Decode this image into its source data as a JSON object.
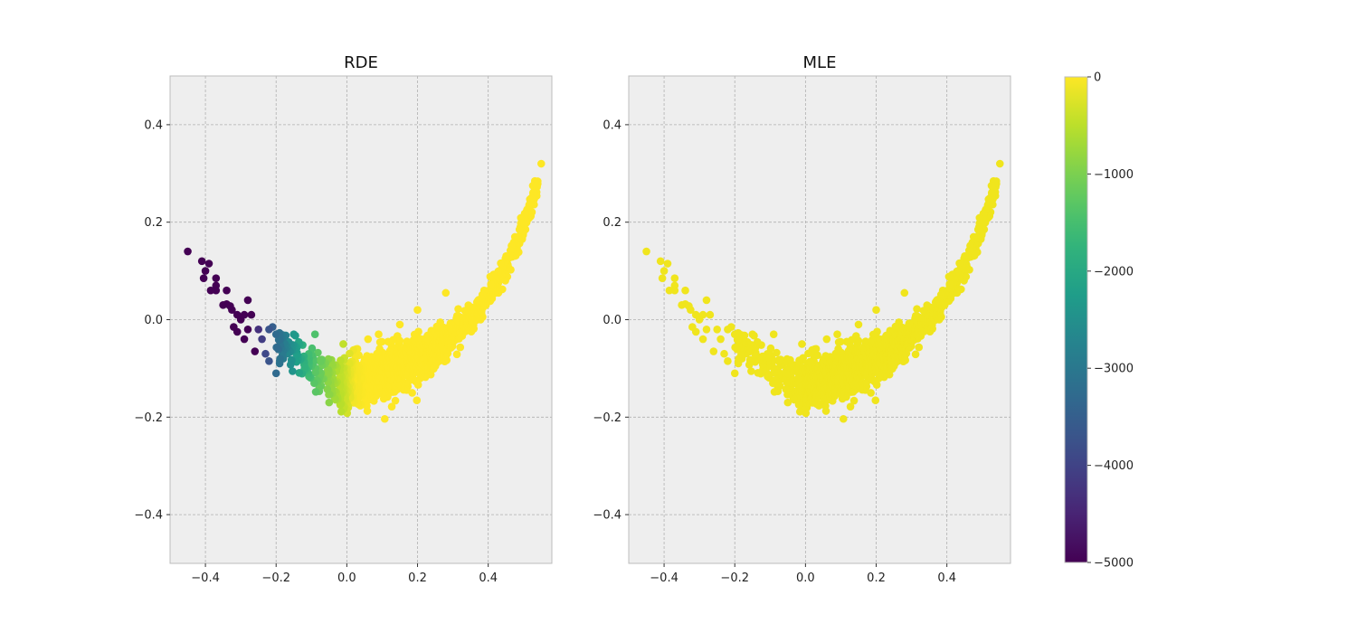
{
  "chart_data": [
    {
      "type": "scatter",
      "title": "RDE",
      "xlabel": "",
      "ylabel": "",
      "xlim": [
        -0.5,
        0.58
      ],
      "ylim": [
        -0.5,
        0.5
      ],
      "x_ticks": [
        -0.4,
        -0.2,
        0.0,
        0.2,
        0.4
      ],
      "y_ticks": [
        -0.4,
        -0.2,
        0.0,
        0.2,
        0.4
      ],
      "x_tick_labels": [
        "−0.4",
        "−0.2",
        "0.0",
        "0.2",
        "0.4"
      ],
      "y_tick_labels": [
        "−0.4",
        "−0.2",
        "0.0",
        "0.2",
        "0.4"
      ],
      "grid": true,
      "background": "#eeeeee",
      "color_mode": "rde",
      "points_description": "arc-shaped point cloud; values near 0 on the right arm, strongly negative on the left arm"
    },
    {
      "type": "scatter",
      "title": "MLE",
      "xlabel": "",
      "ylabel": "",
      "xlim": [
        -0.5,
        0.58
      ],
      "ylim": [
        -0.5,
        0.5
      ],
      "x_ticks": [
        -0.4,
        -0.2,
        0.0,
        0.2,
        0.4
      ],
      "y_ticks": [
        -0.4,
        -0.2,
        0.0,
        0.2,
        0.4
      ],
      "x_tick_labels": [
        "−0.4",
        "−0.2",
        "0.0",
        "0.2",
        "0.4"
      ],
      "y_tick_labels": [
        "−0.4",
        "−0.2",
        "0.0",
        "0.2",
        "0.4"
      ],
      "grid": true,
      "background": "#eeeeee",
      "color_mode": "uniform",
      "uniform_color": "#f0e51d"
    }
  ],
  "colorbar": {
    "colormap": "viridis",
    "range": [
      -5000,
      0
    ],
    "ticks": [
      0,
      -1000,
      -2000,
      -3000,
      -4000,
      -5000
    ],
    "tick_labels": [
      "0",
      "−1000",
      "−2000",
      "−3000",
      "−4000",
      "−5000"
    ]
  },
  "curve": {
    "sample_count": 1500,
    "outlier_points": [
      [
        -0.45,
        0.14
      ],
      [
        -0.41,
        0.12
      ],
      [
        -0.39,
        0.115
      ],
      [
        -0.4,
        0.1
      ],
      [
        -0.405,
        0.085
      ],
      [
        -0.37,
        0.085
      ],
      [
        -0.37,
        0.07
      ],
      [
        -0.385,
        0.06
      ],
      [
        -0.37,
        0.06
      ],
      [
        -0.34,
        0.06
      ],
      [
        -0.35,
        0.03
      ],
      [
        -0.34,
        0.032
      ],
      [
        -0.33,
        0.028
      ],
      [
        -0.325,
        0.02
      ],
      [
        -0.28,
        0.04
      ],
      [
        -0.31,
        0.01
      ],
      [
        -0.29,
        0.01
      ],
      [
        -0.3,
        0.0
      ],
      [
        -0.27,
        0.01
      ],
      [
        -0.32,
        -0.015
      ],
      [
        -0.31,
        -0.025
      ],
      [
        -0.28,
        -0.02
      ],
      [
        -0.29,
        -0.04
      ],
      [
        -0.25,
        -0.02
      ],
      [
        -0.22,
        -0.02
      ],
      [
        -0.21,
        -0.015
      ],
      [
        -0.2,
        -0.03
      ],
      [
        -0.24,
        -0.04
      ],
      [
        -0.26,
        -0.065
      ],
      [
        -0.23,
        -0.07
      ],
      [
        -0.22,
        -0.085
      ],
      [
        -0.19,
        -0.09
      ],
      [
        -0.2,
        -0.11
      ],
      [
        -0.15,
        -0.03
      ],
      [
        -0.09,
        -0.03
      ],
      [
        -0.01,
        -0.05
      ],
      [
        0.03,
        -0.06
      ],
      [
        0.06,
        -0.04
      ],
      [
        0.09,
        -0.03
      ],
      [
        0.15,
        -0.01
      ],
      [
        0.2,
        0.02
      ],
      [
        0.28,
        0.055
      ],
      [
        0.0,
        -0.185
      ],
      [
        -0.05,
        -0.17
      ],
      [
        0.55,
        0.32
      ]
    ]
  }
}
